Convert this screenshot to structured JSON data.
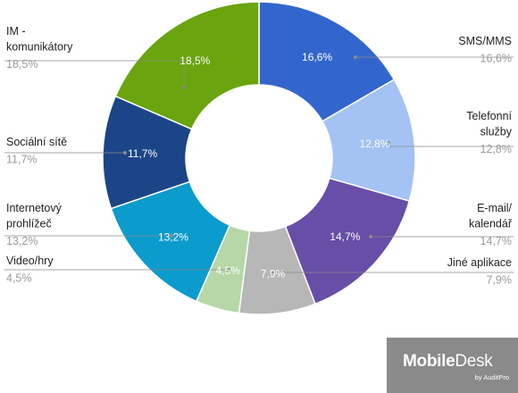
{
  "chart_data": {
    "type": "pie",
    "donut": true,
    "title": "",
    "slices": [
      {
        "label": [
          "SMS/MMS"
        ],
        "value": 16.6,
        "display": "16,6%",
        "color": "#3366cc"
      },
      {
        "label": [
          "Telefonní",
          "služby"
        ],
        "value": 12.8,
        "display": "12,8%",
        "color": "#a4c2f4"
      },
      {
        "label": [
          "E-mail/",
          "kalendář"
        ],
        "value": 14.7,
        "display": "14,7%",
        "color": "#674ea7"
      },
      {
        "label": [
          "Jiné aplikace"
        ],
        "value": 7.9,
        "display": "7,9%",
        "color": "#b7b7b7"
      },
      {
        "label": [
          "Video/hry"
        ],
        "value": 4.5,
        "display": "4,5%",
        "color": "#b6d7a8"
      },
      {
        "label": [
          "Internetový",
          "prohlížeč"
        ],
        "value": 13.2,
        "display": "13,2%",
        "color": "#0b9bcd"
      },
      {
        "label": [
          "Sociální sítě"
        ],
        "value": 11.7,
        "display": "11,7%",
        "color": "#1c4587"
      },
      {
        "label": [
          "IM -",
          "komunikátory"
        ],
        "value": 18.5,
        "display": "18,5%",
        "color": "#6aa40e"
      }
    ]
  },
  "logo": {
    "brand_bold": "Mobile",
    "brand_regular": "Desk",
    "sub": "by AuditPro"
  }
}
